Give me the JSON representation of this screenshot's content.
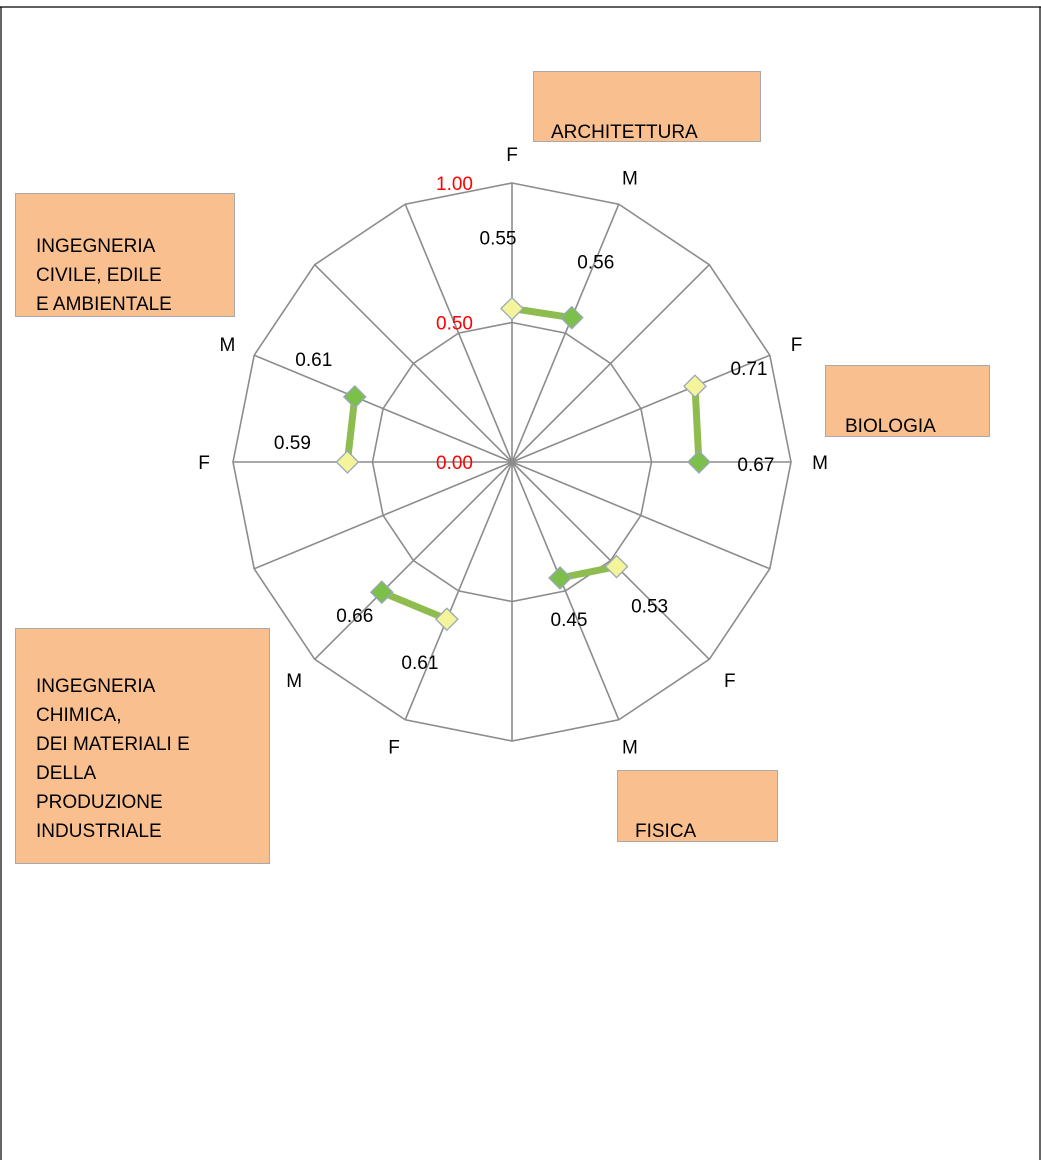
{
  "chart_data": {
    "type": "radar",
    "spokes": [
      "F",
      "M",
      "",
      "F",
      "M",
      "",
      "F",
      "M",
      "",
      "F",
      "M",
      "",
      "F",
      "M",
      "",
      ""
    ],
    "rlim": [
      0,
      1
    ],
    "rticks": [
      {
        "value": 0,
        "label": "0.00"
      },
      {
        "value": 0.5,
        "label": "0.50"
      },
      {
        "value": 1,
        "label": "1.00"
      }
    ],
    "groups": [
      {
        "name": "ARCHITETTURA",
        "points": [
          {
            "spoke": 0,
            "label": "F",
            "value": 0.55,
            "value_label": "0.55"
          },
          {
            "spoke": 1,
            "label": "M",
            "value": 0.56,
            "value_label": "0.56"
          }
        ]
      },
      {
        "name": "BIOLOGIA",
        "points": [
          {
            "spoke": 3,
            "label": "F",
            "value": 0.71,
            "value_label": "0.71"
          },
          {
            "spoke": 4,
            "label": "M",
            "value": 0.67,
            "value_label": "0.67"
          }
        ]
      },
      {
        "name": "FISICA",
        "points": [
          {
            "spoke": 6,
            "label": "F",
            "value": 0.53,
            "value_label": "0.53"
          },
          {
            "spoke": 7,
            "label": "M",
            "value": 0.45,
            "value_label": "0.45"
          }
        ]
      },
      {
        "name": "INGEGNERIA\nCHIMICA,\nDEI MATERIALI E\nDELLA\nPRODUZIONE\nINDUSTRIALE",
        "points": [
          {
            "spoke": 9,
            "label": "F",
            "value": 0.61,
            "value_label": "0.61"
          },
          {
            "spoke": 10,
            "label": "M",
            "value": 0.66,
            "value_label": "0.66"
          }
        ]
      },
      {
        "name": "INGEGNERIA\nCIVILE, EDILE\nE AMBIENTALE",
        "points": [
          {
            "spoke": 12,
            "label": "F",
            "value": 0.59,
            "value_label": "0.59"
          },
          {
            "spoke": 13,
            "label": "M",
            "value": 0.61,
            "value_label": "0.61"
          }
        ]
      }
    ],
    "colors": {
      "grid": "#8c8c8c",
      "line": "#8fbc4f",
      "marker_f": "#f4f49a",
      "marker_m": "#7cbf4a",
      "tick_label": "#ff0000",
      "box_fill": "#f9bf8f",
      "box_border": "#a9a9a9"
    }
  }
}
